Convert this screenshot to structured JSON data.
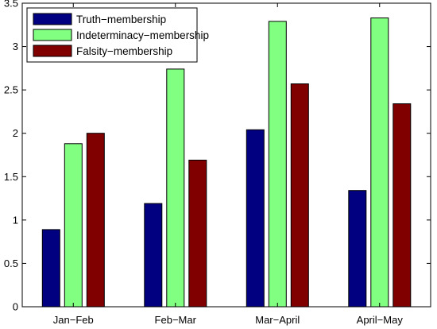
{
  "chart_data": {
    "type": "bar",
    "categories": [
      "Jan−Feb",
      "Feb−Mar",
      "Mar−April",
      "April−May"
    ],
    "series": [
      {
        "name": "Truth−membership",
        "color": "#000080",
        "values": [
          0.89,
          1.19,
          2.04,
          1.34
        ]
      },
      {
        "name": "Indeterminacy−membership",
        "color": "#80ff80",
        "values": [
          1.88,
          2.74,
          3.29,
          3.33
        ]
      },
      {
        "name": "Falsity−membership",
        "color": "#800000",
        "values": [
          2.0,
          1.69,
          2.57,
          2.34
        ]
      }
    ],
    "title": "",
    "xlabel": "",
    "ylabel": "",
    "ylim": [
      0,
      3.5
    ],
    "yticks": [
      "0",
      "0.5",
      "1",
      "1.5",
      "2",
      "2.5",
      "3",
      "3.5"
    ],
    "grid": false,
    "legend_position": "top-left"
  }
}
